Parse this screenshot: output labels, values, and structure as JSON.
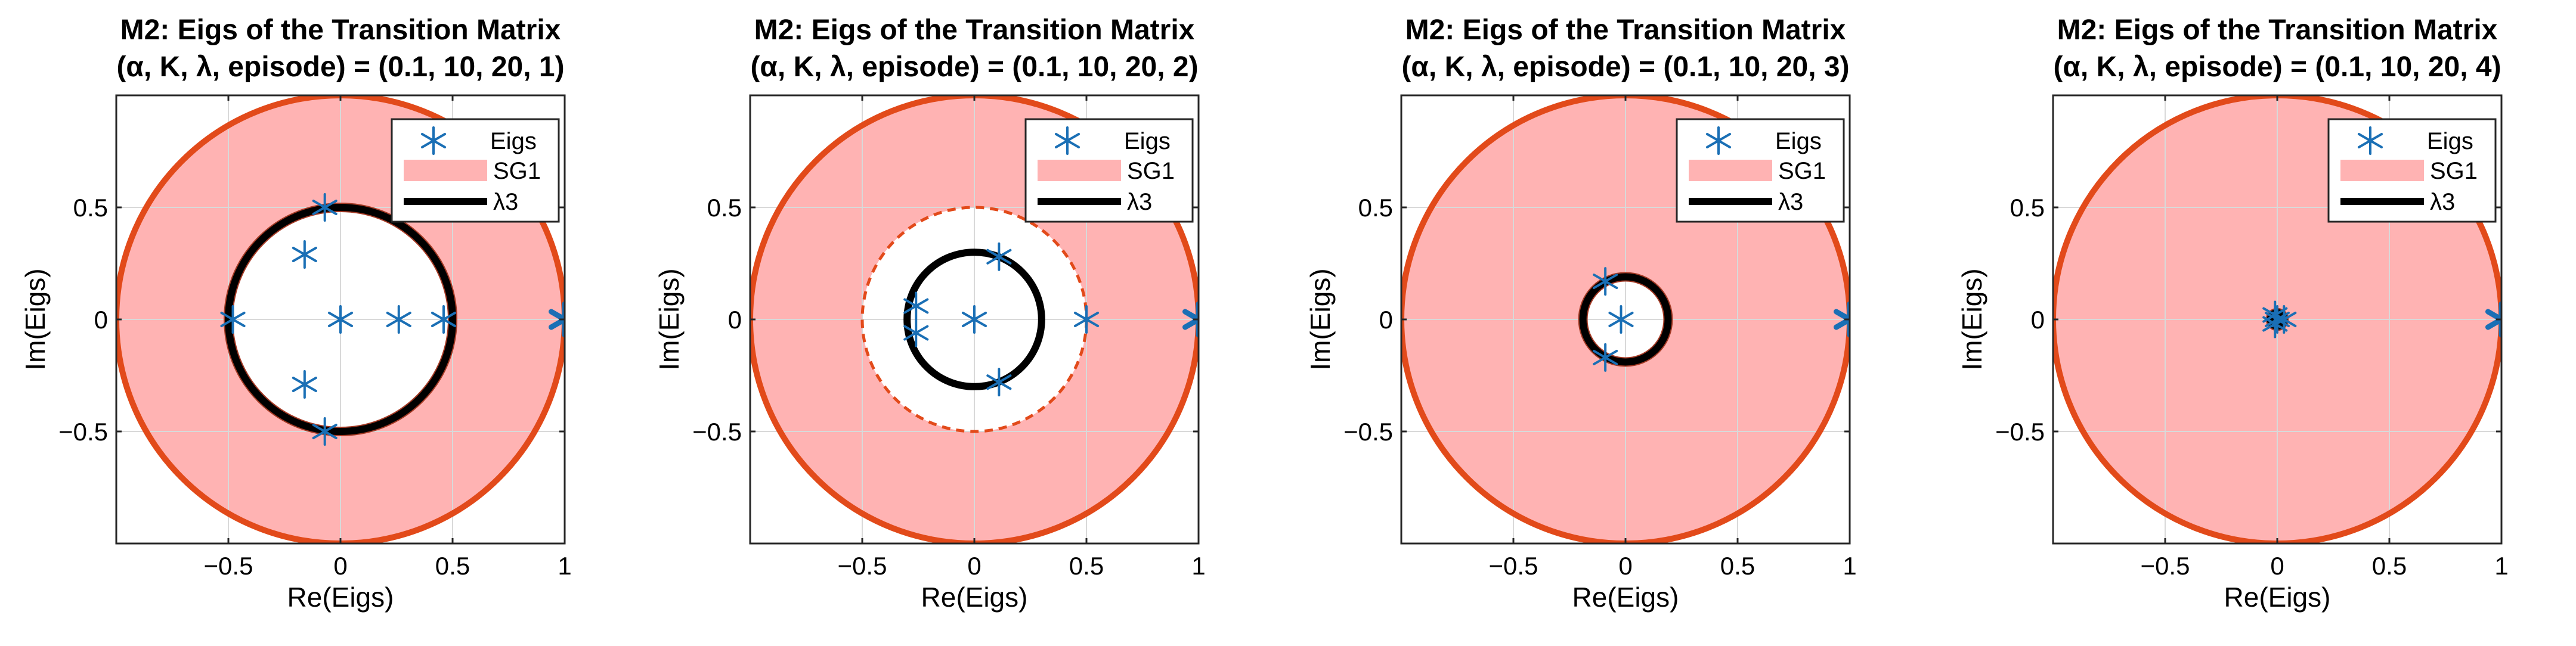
{
  "chart_data": [
    {
      "type": "scatter",
      "title": "M2: Eigs of the Transition Matrix",
      "subtitle": "(α, K, λ, episode) = (0.1, 10, 20, 1)",
      "xlabel": "Re(Eigs)",
      "ylabel": "Im(Eigs)",
      "xlim": [
        -1,
        1
      ],
      "ylim": [
        -1,
        1
      ],
      "xticks": [
        -0.5,
        0,
        0.5,
        1
      ],
      "xtick_labels": [
        "−0.5",
        "0",
        "0.5",
        "1"
      ],
      "yticks": [
        -0.5,
        0,
        0.5
      ],
      "ytick_labels": [
        "−0.5",
        "0",
        "0.5"
      ],
      "grid": true,
      "legend_position": "top-right",
      "legend": [
        "Eigs",
        "SG1",
        "λ3"
      ],
      "sg1_outer_radius": 1,
      "sg1_inner_radius": 0.5,
      "lambda3_radius": 0.5,
      "eigs": [
        {
          "re": 1.0,
          "im": 0.0
        },
        {
          "re": -0.07,
          "im": 0.5
        },
        {
          "re": -0.07,
          "im": -0.5
        },
        {
          "re": -0.48,
          "im": 0.0
        },
        {
          "re": 0.0,
          "im": 0.0
        },
        {
          "re": 0.26,
          "im": 0.0
        },
        {
          "re": 0.46,
          "im": 0.0
        },
        {
          "re": -0.16,
          "im": 0.29
        },
        {
          "re": -0.16,
          "im": -0.29
        }
      ]
    },
    {
      "type": "scatter",
      "title": "M2: Eigs of the Transition Matrix",
      "subtitle": "(α, K, λ, episode) = (0.1, 10, 20, 2)",
      "xlabel": "Re(Eigs)",
      "ylabel": "Im(Eigs)",
      "xlim": [
        -1,
        1
      ],
      "ylim": [
        -1,
        1
      ],
      "xticks": [
        -0.5,
        0,
        0.5,
        1
      ],
      "xtick_labels": [
        "−0.5",
        "0",
        "0.5",
        "1"
      ],
      "yticks": [
        -0.5,
        0,
        0.5
      ],
      "ytick_labels": [
        "−0.5",
        "0",
        "0.5"
      ],
      "grid": true,
      "legend_position": "top-right",
      "legend": [
        "Eigs",
        "SG1",
        "λ3"
      ],
      "sg1_outer_radius": 1,
      "sg1_inner_radius": 0.5,
      "lambda3_radius": 0.3,
      "eigs": [
        {
          "re": 1.0,
          "im": 0.0
        },
        {
          "re": -0.26,
          "im": 0.06
        },
        {
          "re": -0.26,
          "im": -0.06
        },
        {
          "re": 0.0,
          "im": 0.0
        },
        {
          "re": 0.11,
          "im": 0.28
        },
        {
          "re": 0.11,
          "im": -0.28
        },
        {
          "re": 0.5,
          "im": 0.0
        }
      ]
    },
    {
      "type": "scatter",
      "title": "M2: Eigs of the Transition Matrix",
      "subtitle": "(α, K, λ, episode) = (0.1, 10, 20, 3)",
      "xlabel": "Re(Eigs)",
      "ylabel": "Im(Eigs)",
      "xlim": [
        -1,
        1
      ],
      "ylim": [
        -1,
        1
      ],
      "xticks": [
        -0.5,
        0,
        0.5,
        1
      ],
      "xtick_labels": [
        "−0.5",
        "0",
        "0.5",
        "1"
      ],
      "yticks": [
        -0.5,
        0,
        0.5
      ],
      "ytick_labels": [
        "−0.5",
        "0",
        "0.5"
      ],
      "grid": true,
      "legend_position": "top-right",
      "legend": [
        "Eigs",
        "SG1",
        "λ3"
      ],
      "sg1_outer_radius": 1,
      "sg1_inner_radius": 0.19,
      "lambda3_radius": 0.19,
      "eigs": [
        {
          "re": 1.0,
          "im": 0.0
        },
        {
          "re": -0.09,
          "im": 0.17
        },
        {
          "re": -0.09,
          "im": -0.17
        },
        {
          "re": -0.02,
          "im": 0.0
        }
      ]
    },
    {
      "type": "scatter",
      "title": "M2: Eigs of the Transition Matrix",
      "subtitle": "(α, K, λ, episode) = (0.1, 10, 20, 4)",
      "xlabel": "Re(Eigs)",
      "ylabel": "Im(Eigs)",
      "xlim": [
        -1,
        1
      ],
      "ylim": [
        -1,
        1
      ],
      "xticks": [
        -0.5,
        0,
        0.5,
        1
      ],
      "xtick_labels": [
        "−0.5",
        "0",
        "0.5",
        "1"
      ],
      "yticks": [
        -0.5,
        0,
        0.5
      ],
      "ytick_labels": [
        "−0.5",
        "0",
        "0.5"
      ],
      "grid": true,
      "legend_position": "top-right",
      "legend": [
        "Eigs",
        "SG1",
        "λ3"
      ],
      "sg1_outer_radius": 1,
      "sg1_inner_radius": 0.03,
      "lambda3_radius": 0.03,
      "eigs": [
        {
          "re": 1.0,
          "im": 0.0
        },
        {
          "re": 0.0,
          "im": 0.0
        },
        {
          "re": -0.01,
          "im": 0.02
        },
        {
          "re": -0.01,
          "im": -0.02
        },
        {
          "re": 0.03,
          "im": 0.0
        }
      ]
    }
  ],
  "colors": {
    "sg1_fill": "#ffb3b3",
    "sg1_edge": "#e24a1a",
    "eig_marker": "#1a6fb5",
    "lambda3_line": "#000000",
    "grid": "#d9d9d9",
    "axis": "#262626",
    "text": "#000000"
  }
}
